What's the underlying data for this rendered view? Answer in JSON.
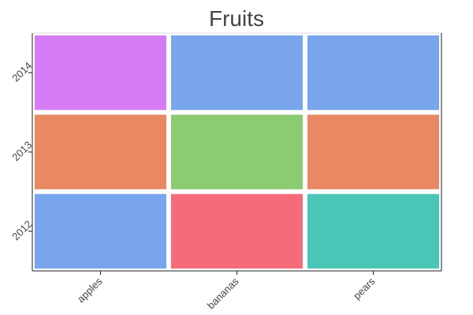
{
  "chart_data": {
    "type": "heatmap",
    "title": "Fruits",
    "xlabel": "",
    "ylabel": "",
    "x_categories": [
      "apples",
      "bananas",
      "pears"
    ],
    "y_categories": [
      "2012",
      "2013",
      "2014"
    ],
    "cells": [
      {
        "x": "apples",
        "y": "2014",
        "color": "#d57bf4"
      },
      {
        "x": "bananas",
        "y": "2014",
        "color": "#78a5ec"
      },
      {
        "x": "pears",
        "y": "2014",
        "color": "#78a5ec"
      },
      {
        "x": "apples",
        "y": "2013",
        "color": "#e88964"
      },
      {
        "x": "bananas",
        "y": "2013",
        "color": "#8bcb72"
      },
      {
        "x": "pears",
        "y": "2013",
        "color": "#e88964"
      },
      {
        "x": "apples",
        "y": "2012",
        "color": "#78a5ec"
      },
      {
        "x": "bananas",
        "y": "2012",
        "color": "#f56b7a"
      },
      {
        "x": "pears",
        "y": "2012",
        "color": "#4ac6b7"
      }
    ],
    "grid": false,
    "legend": "none"
  }
}
